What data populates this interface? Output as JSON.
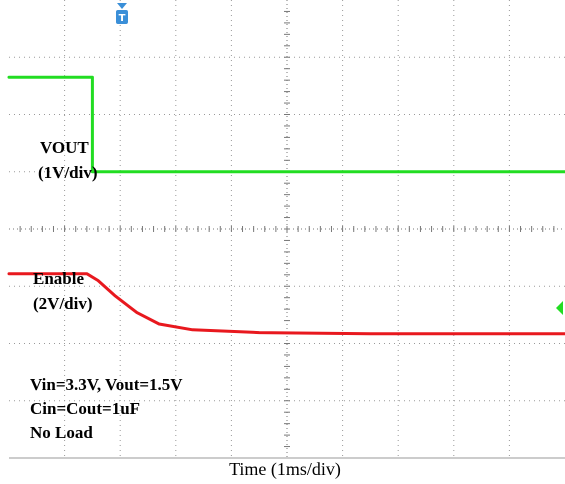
{
  "chart_data": {
    "type": "line",
    "title": "",
    "xlabel": "Time (1ms/div)",
    "x_unit": "ms",
    "xlim": [
      -2.5,
      7.5
    ],
    "grid": true,
    "trigger_marker": "T",
    "channels": [
      {
        "name": "VOUT",
        "scale_label": "(1V/div)",
        "color": "#e8181e",
        "ylim": [
          -1.72,
          6.28
        ],
        "points": [
          [
            -2.5,
            1.5
          ],
          [
            -1.1,
            1.5
          ],
          [
            -0.9,
            1.38
          ],
          [
            -0.6,
            1.12
          ],
          [
            -0.2,
            0.82
          ],
          [
            0.2,
            0.62
          ],
          [
            0.8,
            0.52
          ],
          [
            2.0,
            0.47
          ],
          [
            4.0,
            0.45
          ],
          [
            7.5,
            0.45
          ]
        ]
      },
      {
        "name": "Enable",
        "scale_label": "(2V/div)",
        "color": "#22dd22",
        "ylim": [
          -10.0,
          6.0
        ],
        "points": [
          [
            -2.5,
            3.3
          ],
          [
            -1.0,
            3.3
          ],
          [
            -1.0,
            0.0
          ],
          [
            7.5,
            0.0
          ]
        ]
      }
    ],
    "annotations": [
      "Vin=3.3V, Vout=1.5V",
      "Cin=Cout=1uF",
      "No Load"
    ]
  }
}
